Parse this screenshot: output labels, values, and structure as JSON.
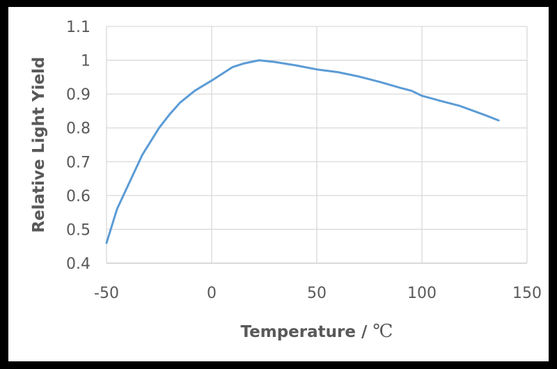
{
  "chart_data": {
    "type": "line",
    "title": "",
    "xlabel": "Temperature / ℃",
    "xlabel_main": "Temperature / ",
    "xlabel_unit": "℃",
    "ylabel": "Relative Light Yield",
    "xlim": [
      -50,
      150
    ],
    "ylim": [
      0.4,
      1.1
    ],
    "xticks": [
      -50,
      0,
      50,
      100,
      150
    ],
    "yticks": [
      0.4,
      0.5,
      0.6,
      0.7,
      0.8,
      0.9,
      1,
      1.1
    ],
    "xtick_labels": [
      "-50",
      "0",
      "50",
      "100",
      "150"
    ],
    "ytick_labels": [
      "0.4",
      "0.5",
      "0.6",
      "0.7",
      "0.8",
      "0.9",
      "1",
      "1.1"
    ],
    "grid": true,
    "legend": null,
    "series": [
      {
        "name": "Relative Light Yield",
        "color": "#5B9BD5",
        "x": [
          -50,
          -45,
          -39,
          -33,
          -28,
          -25,
          -20,
          -15,
          -8,
          0,
          5,
          10,
          15,
          22.5,
          30,
          40,
          50,
          60,
          70,
          80,
          90,
          95,
          100,
          110,
          118,
          130,
          136.5
        ],
        "y": [
          0.46,
          0.56,
          0.64,
          0.72,
          0.77,
          0.8,
          0.84,
          0.875,
          0.91,
          0.94,
          0.96,
          0.98,
          0.99,
          1.0,
          0.995,
          0.985,
          0.973,
          0.965,
          0.952,
          0.936,
          0.918,
          0.91,
          0.895,
          0.878,
          0.865,
          0.838,
          0.822
        ]
      }
    ]
  },
  "colors": {
    "background": "#FFFFFF",
    "border": "#000000",
    "grid": "#D9D9D9",
    "text": "#595959",
    "line": "#5B9BD5"
  }
}
